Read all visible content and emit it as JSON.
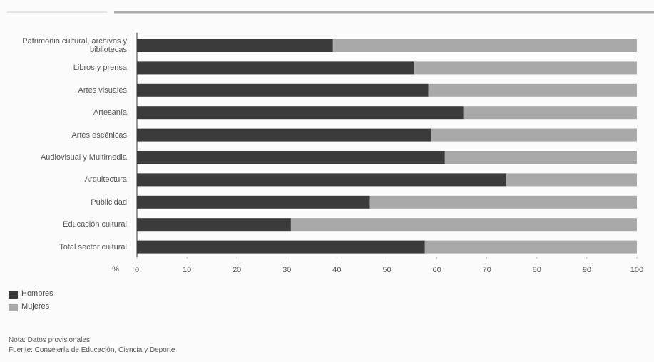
{
  "chart_data": {
    "type": "stacked-bar-horizontal",
    "categories": [
      "Patrimonio cultural, archivos y bibliotecas",
      "Libros y prensa",
      "Artes visuales",
      "Artesanía",
      "Artes escénicas",
      "Audiovisual y Multimedia",
      "Arquitectura",
      "Publicidad",
      "Educación cultural",
      "Total sector cultural"
    ],
    "series": [
      {
        "name": "Hombres",
        "color": "#3b3b3b",
        "values": [
          39.2,
          55.5,
          58.3,
          65.3,
          58.9,
          61.6,
          73.9,
          46.6,
          30.8,
          57.6
        ]
      },
      {
        "name": "Mujeres",
        "color": "#a9a9a9",
        "values": [
          60.8,
          44.5,
          41.7,
          34.7,
          41.1,
          38.4,
          26.1,
          53.4,
          69.2,
          42.4
        ]
      }
    ],
    "x_axis_label": "%",
    "xlim": [
      0,
      100
    ],
    "xticks": [
      0,
      10,
      20,
      30,
      40,
      50,
      60,
      70,
      80,
      90,
      100
    ],
    "notes": [
      "Nota: Datos provisionales",
      "Fuente: Consejería de Educación, Ciencia y Deporte"
    ]
  }
}
